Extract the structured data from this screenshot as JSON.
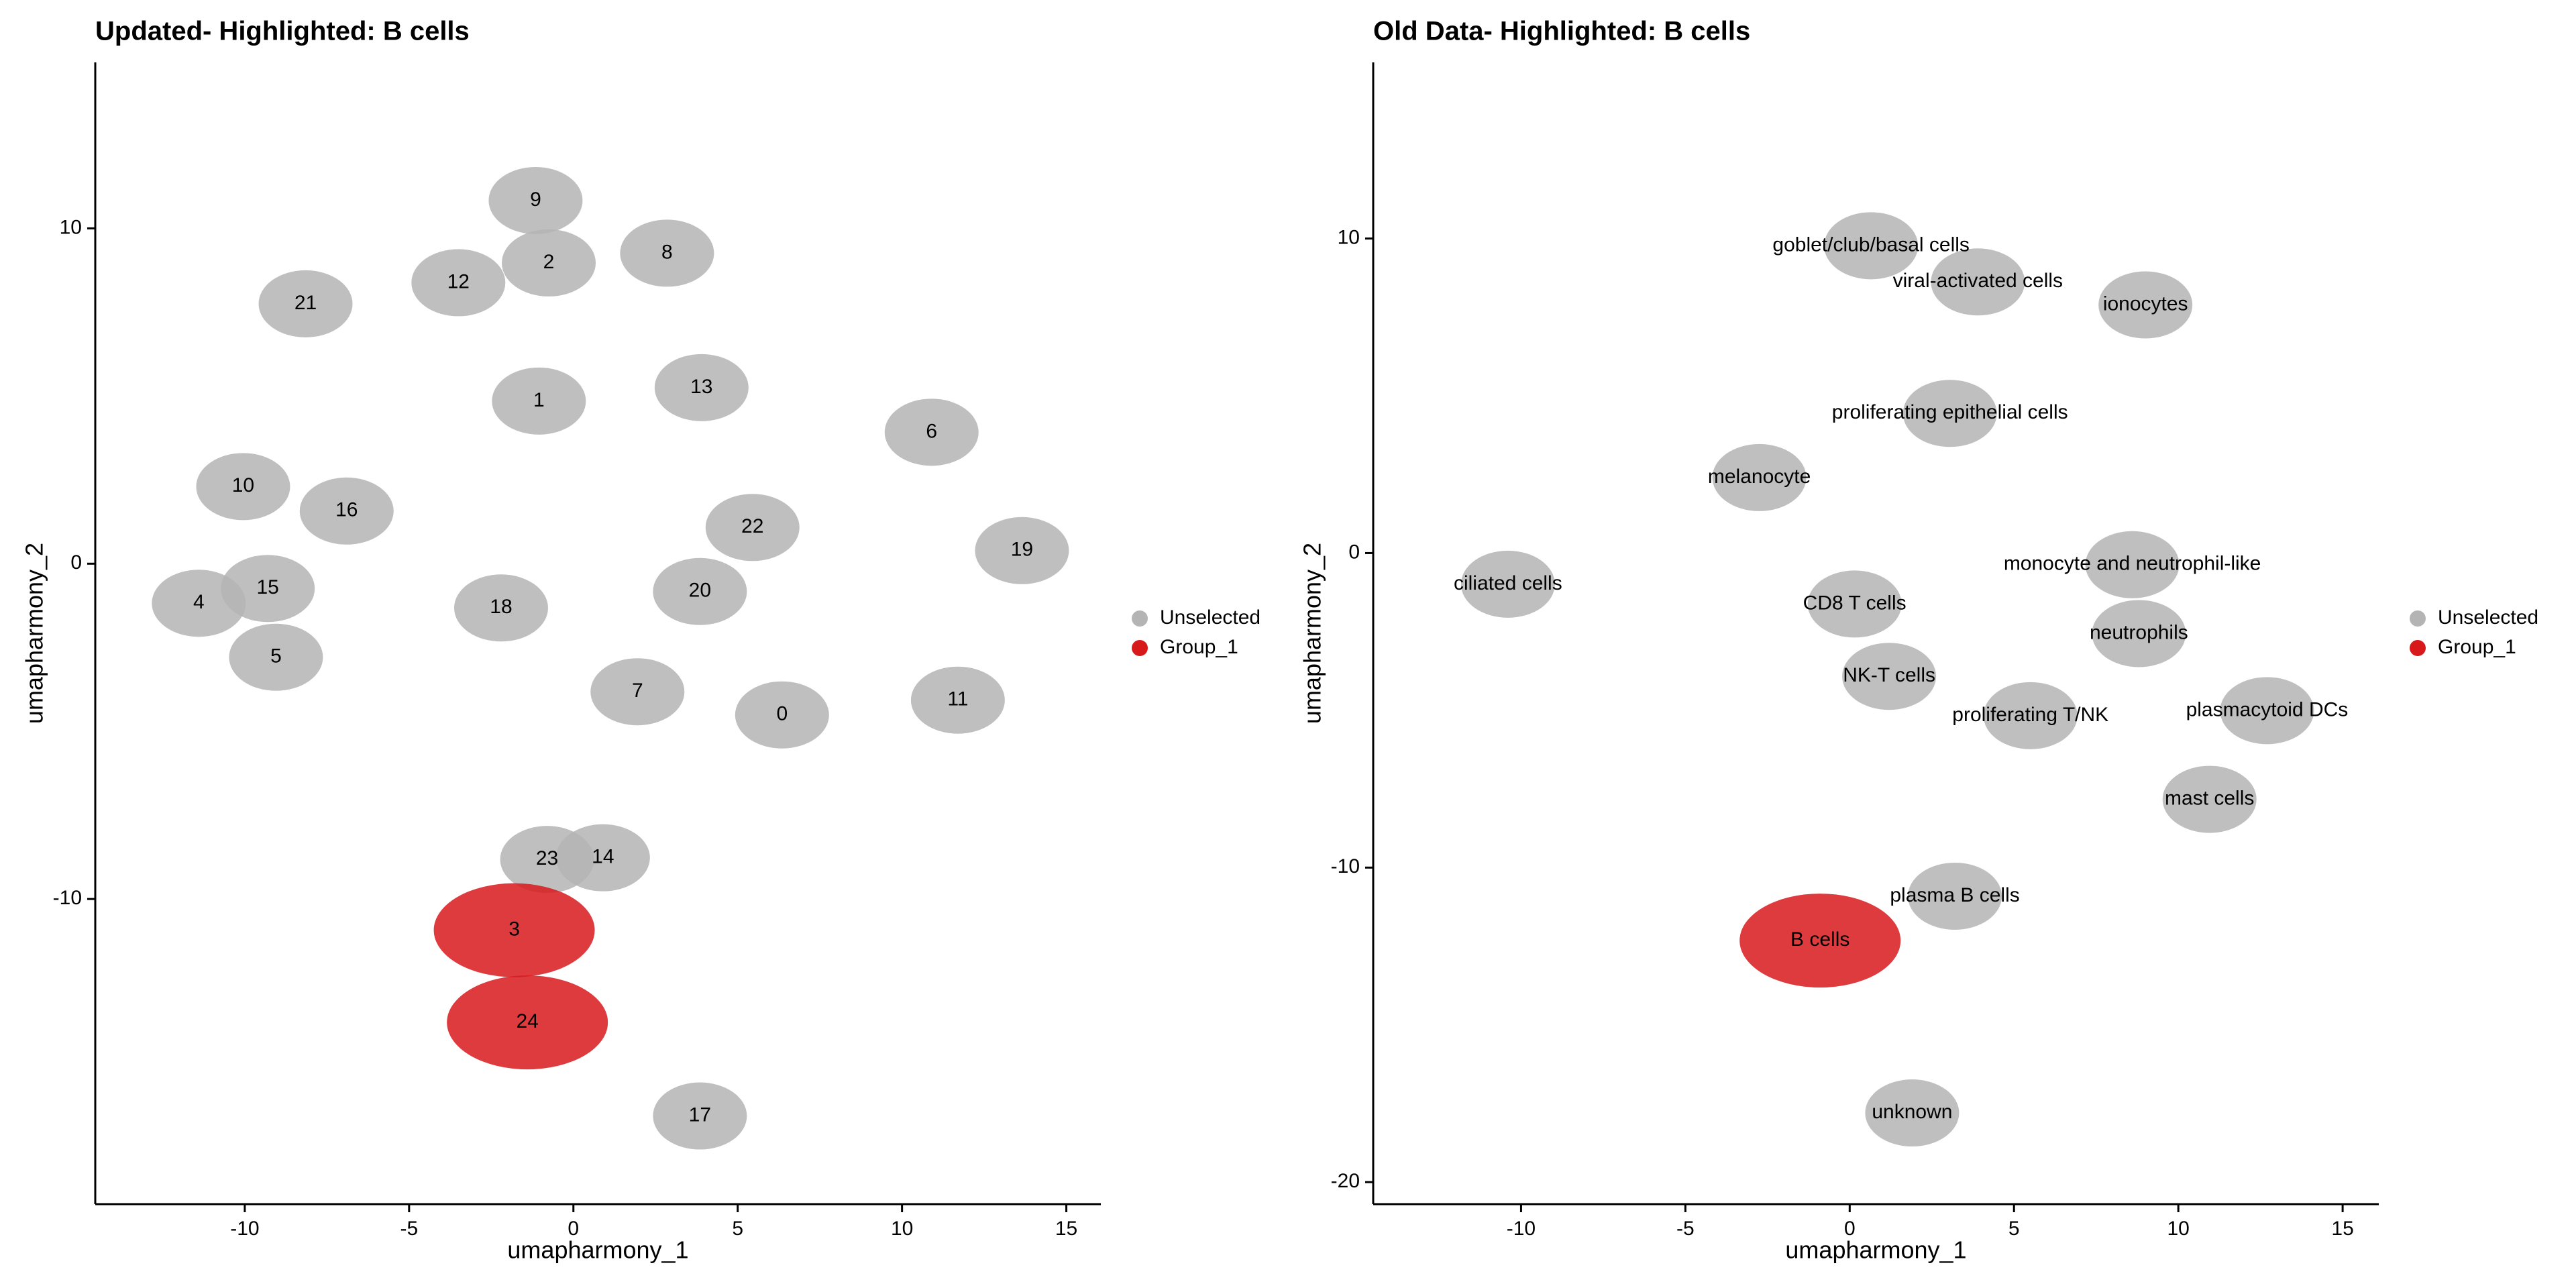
{
  "chart_data": [
    {
      "type": "scatter",
      "title": "Updated- Highlighted: B cells",
      "x_label": "umapharmony_1",
      "y_label": "umapharmony_2",
      "xlim": [
        -14.55,
        16.05
      ],
      "ylim": [
        -19.1,
        14.95
      ],
      "xticks": [
        -10,
        -5,
        0,
        5,
        10,
        15
      ],
      "yticks": [
        -10,
        0,
        10
      ],
      "grid": false,
      "series": [
        {
          "name": "Unselected",
          "color": "#b4b4b4",
          "labels": [
            "9",
            "2",
            "8",
            "12",
            "21",
            "1",
            "13",
            "6",
            "10",
            "16",
            "22",
            "19",
            "15",
            "20",
            "4",
            "18",
            "5",
            "7",
            "0",
            "11",
            "23",
            "14",
            "17"
          ],
          "x": [
            -1.15,
            -0.75,
            2.85,
            -3.5,
            -8.15,
            -1.05,
            3.9,
            10.9,
            -10.05,
            -6.9,
            5.45,
            13.65,
            -9.3,
            3.85,
            -11.4,
            -2.2,
            -9.05,
            1.95,
            6.35,
            11.7,
            -0.8,
            0.9,
            3.85
          ],
          "values": [
            10.83,
            8.97,
            9.26,
            8.38,
            7.75,
            4.85,
            5.25,
            3.92,
            2.3,
            1.57,
            1.08,
            0.39,
            -0.74,
            -0.83,
            -1.18,
            -1.32,
            -2.79,
            -3.82,
            -4.51,
            -4.07,
            -8.82,
            -8.77,
            -16.47
          ]
        },
        {
          "name": "Group_1",
          "color": "#d7191c",
          "labels": [
            "3",
            "24"
          ],
          "x": [
            -1.8,
            -1.4
          ],
          "values": [
            -10.93,
            -13.68
          ]
        }
      ]
    },
    {
      "type": "scatter",
      "title": "Old Data- Highlighted: B cells",
      "x_label": "umapharmony_1",
      "y_label": "umapharmony_2",
      "xlim": [
        -14.5,
        16.1
      ],
      "ylim": [
        -20.7,
        15.6
      ],
      "xticks": [
        -10,
        -5,
        0,
        5,
        10,
        15
      ],
      "yticks": [
        -20,
        -10,
        0,
        10
      ],
      "grid": false,
      "series": [
        {
          "name": "Unselected",
          "color": "#b4b4b4",
          "labels": [
            "goblet/club/basal cells",
            "viral-activated cells",
            "ionocytes",
            "proliferating epithelial cells",
            "melanocyte",
            "ciliated cells",
            "monocyte and neutrophil-like",
            "CD8 T cells",
            "neutrophils",
            "NK-T cells",
            "proliferating T/NK",
            "plasmacytoid DCs",
            "mast cells",
            "plasma B cells",
            "unknown"
          ],
          "x": [
            0.65,
            3.9,
            9.0,
            3.05,
            -2.75,
            -10.4,
            8.6,
            0.15,
            8.8,
            1.2,
            5.5,
            12.7,
            10.95,
            3.2,
            1.9
          ],
          "values": [
            9.77,
            8.62,
            7.89,
            4.44,
            2.4,
            -0.99,
            -0.37,
            -1.62,
            -2.56,
            -3.92,
            -5.17,
            -5.01,
            -7.83,
            -10.91,
            -17.8
          ]
        },
        {
          "name": "Group_1",
          "color": "#d7191c",
          "labels": [
            "B cells"
          ],
          "x": [
            -0.9
          ],
          "values": [
            -12.32
          ]
        }
      ]
    }
  ]
}
